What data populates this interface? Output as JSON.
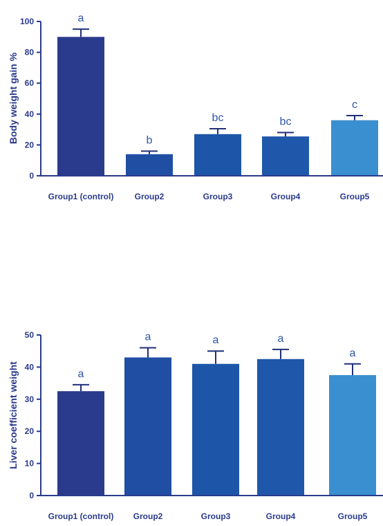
{
  "colors": {
    "axis": "#2a3a8c",
    "text": "#2a3a8c",
    "error": "#1f2f7a",
    "sig_text": "#2f55a8",
    "bars": [
      "#2a3a8c",
      "#1f4ea3",
      "#1d56a8",
      "#1f57aa",
      "#3a8fd0"
    ]
  },
  "chart_data": [
    {
      "type": "bar",
      "title": "",
      "xlabel": "",
      "ylabel": "Body weight gain %",
      "ylim": [
        0,
        100
      ],
      "yticks": [
        "0",
        "20",
        "40",
        "60",
        "80",
        "100"
      ],
      "categories": [
        "Group1 (control)",
        "Group2",
        "Group3",
        "Group4",
        "Group5"
      ],
      "values": [
        90,
        14,
        27,
        25.5,
        36
      ],
      "errors": [
        5,
        2,
        3.5,
        2.5,
        3
      ],
      "significance": [
        "a",
        "b",
        "bc",
        "bc",
        "c"
      ]
    },
    {
      "type": "bar",
      "title": "",
      "xlabel": "",
      "ylabel": "Liver coefficient weight",
      "ylim": [
        0,
        50
      ],
      "yticks": [
        "0",
        "10",
        "20",
        "30",
        "40",
        "50"
      ],
      "categories": [
        "Group1 (control)",
        "Group2",
        "Group3",
        "Group4",
        "Group5"
      ],
      "values": [
        32.5,
        43,
        41,
        42.5,
        37.5
      ],
      "errors": [
        2,
        3,
        4,
        3,
        3.5
      ],
      "significance": [
        "a",
        "a",
        "a",
        "a",
        "a"
      ]
    }
  ]
}
